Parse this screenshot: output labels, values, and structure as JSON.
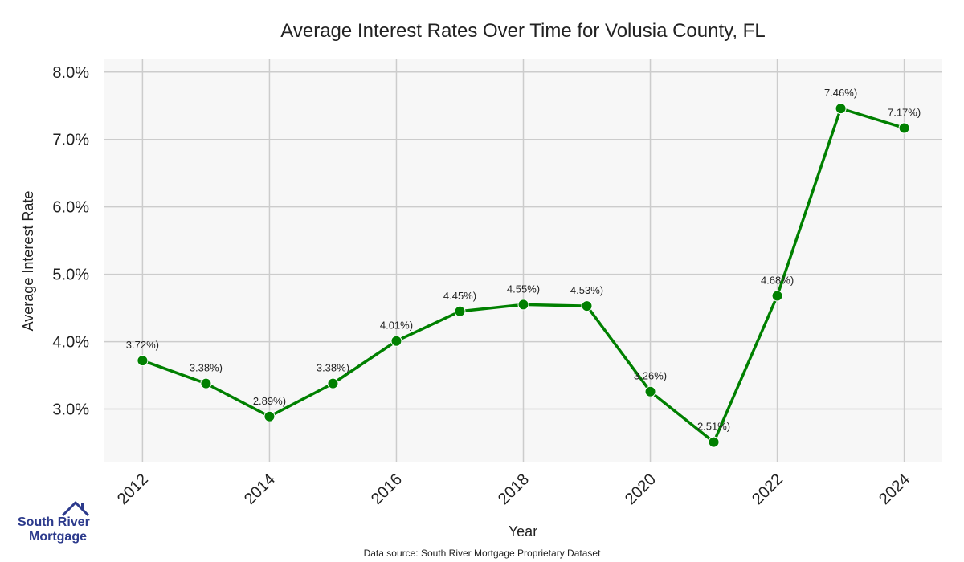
{
  "chart_data": {
    "type": "line",
    "title": "Average Interest Rates Over Time for Volusia County, FL",
    "xlabel": "Year",
    "ylabel": "Average Interest Rate",
    "x": [
      2012,
      2013,
      2014,
      2015,
      2016,
      2017,
      2018,
      2019,
      2020,
      2021,
      2022,
      2023,
      2024
    ],
    "series": [
      {
        "values": [
          3.72,
          3.38,
          2.89,
          3.38,
          4.01,
          4.45,
          4.55,
          4.53,
          3.26,
          2.51,
          4.68,
          7.46,
          7.17
        ]
      }
    ],
    "data_labels": [
      "3.72%)",
      "3.38%)",
      "2.89%)",
      "3.38%)",
      "4.01%)",
      "4.45%)",
      "4.55%)",
      "4.53%)",
      "3.26%)",
      "2.51%)",
      "4.68%)",
      "7.46%)",
      "7.17%)"
    ],
    "xticks": [
      2012,
      2014,
      2016,
      2018,
      2020,
      2022,
      2024
    ],
    "yticks": [
      3.0,
      4.0,
      5.0,
      6.0,
      7.0,
      8.0
    ],
    "ytick_labels": [
      "3.0%",
      "4.0%",
      "5.0%",
      "6.0%",
      "7.0%",
      "8.0%"
    ],
    "xlim": [
      2011.4,
      2024.6
    ],
    "ylim": [
      2.22,
      8.2
    ],
    "grid": true,
    "line_color": "#008000",
    "plot_background": "#f7f7f7",
    "grid_color": "#cccccc"
  },
  "footer": {
    "source": "Data source: South River Mortgage Proprietary Dataset"
  },
  "logo": {
    "line1": "South River",
    "line2": "Mortgage",
    "color": "#2c3a8c"
  }
}
